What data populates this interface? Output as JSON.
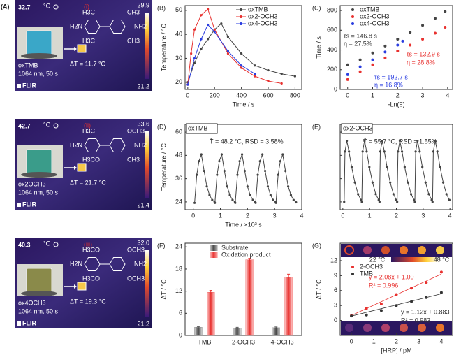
{
  "images": [
    {
      "panel": "(A)",
      "temp": "32.7",
      "unit": "°C",
      "roman": "(i)",
      "max": "29.9",
      "min": "21.2",
      "name": "oxTMB",
      "condition": "1064 nm, 50 s",
      "delta": "ΔT = 11.7 °C",
      "brand": "FLIR",
      "structure": [
        "H3C",
        "H2N",
        "H3C",
        "CH3",
        "NH2",
        "CH3"
      ]
    },
    {
      "temp": "42.7",
      "unit": "°C",
      "roman": "(ii)",
      "max": "33.6",
      "min": "21.4",
      "name": "ox2OCH3",
      "condition": "1064 nm, 50 s",
      "delta": "ΔT = 21.7 °C",
      "brand": "FLIR",
      "structure": [
        "H3C",
        "H2N",
        "H3CO",
        "OCH3",
        "NH2",
        "CH3"
      ]
    },
    {
      "temp": "40.3",
      "unit": "°C",
      "roman": "(iii)",
      "max": "32.0",
      "min": "21.2",
      "name": "ox4OCH3",
      "condition": "1064 nm, 50 s",
      "delta": "ΔT = 19.3 °C",
      "brand": "FLIR",
      "structure": [
        "H3CO",
        "H2N",
        "H3CO",
        "OCH3",
        "NH2",
        "OCH3"
      ]
    }
  ],
  "chart_data": [
    {
      "type": "line",
      "panel": "(B)",
      "xlabel": "Time / s",
      "ylabel": "Temperature / °C",
      "xlim": [
        -20,
        850
      ],
      "ylim": [
        17,
        52
      ],
      "xticks": [
        0,
        200,
        400,
        600,
        800
      ],
      "yticks": [
        20,
        30,
        40,
        50
      ],
      "legend": "upper right",
      "series": [
        {
          "name": "oxTMB",
          "color": "#444444",
          "x": [
            0,
            50,
            100,
            150,
            200,
            250,
            300,
            400,
            500,
            600,
            700,
            800
          ],
          "values": [
            20,
            28,
            34,
            38,
            42,
            44.5,
            39,
            32,
            27,
            25,
            23.5,
            22.5
          ]
        },
        {
          "name": "ox2-OCH3",
          "color": "#e8312f",
          "x": [
            0,
            25,
            50,
            100,
            150,
            200,
            300,
            400,
            500,
            600,
            700
          ],
          "values": [
            19,
            32,
            42,
            48,
            50.5,
            42,
            32,
            26,
            22.5,
            20.5,
            19.5
          ]
        },
        {
          "name": "ox4-OCH3",
          "color": "#2a3de0",
          "x": [
            0,
            50,
            100,
            150,
            200,
            300,
            400,
            500
          ],
          "values": [
            19,
            30,
            38,
            44,
            41,
            33,
            27,
            23.5
          ]
        }
      ]
    },
    {
      "type": "scatter",
      "panel": "(C)",
      "xlabel": "-Ln(θ)",
      "ylabel": "Time / s",
      "xlim": [
        -0.3,
        4.2
      ],
      "ylim": [
        0,
        850
      ],
      "xticks": [
        0,
        1,
        2,
        3,
        4
      ],
      "yticks": [
        0,
        200,
        400,
        600,
        800
      ],
      "legend": "upper left",
      "series": [
        {
          "name": "oxTMB",
          "color": "#444444",
          "x": [
            0,
            0.5,
            1,
            1.5,
            2,
            2.5,
            3,
            3.5,
            3.9
          ],
          "values": [
            250,
            300,
            370,
            440,
            510,
            580,
            650,
            720,
            790
          ]
        },
        {
          "name": "ox2-OCH3",
          "color": "#e8312f",
          "x": [
            0,
            0.5,
            1,
            1.5,
            2,
            2.5,
            3,
            3.5,
            3.9
          ],
          "values": [
            100,
            180,
            250,
            320,
            390,
            450,
            510,
            570,
            630
          ]
        },
        {
          "name": "ox4-OCH3",
          "color": "#2a3de0",
          "x": [
            0,
            0.5,
            1,
            1.5,
            2,
            2.2
          ],
          "values": [
            150,
            230,
            300,
            380,
            450,
            490
          ]
        }
      ],
      "annotations": [
        {
          "text": "τs = 146.8 s",
          "color": "#333333"
        },
        {
          "text": "η = 27.5%",
          "color": "#333333"
        },
        {
          "text": "τs = 132.9 s",
          "color": "#e8312f"
        },
        {
          "text": "η = 28.8%",
          "color": "#e8312f"
        },
        {
          "text": "τs = 192.7 s",
          "color": "#2a3de0"
        },
        {
          "text": "η = 16.8%",
          "color": "#2a3de0"
        }
      ]
    },
    {
      "type": "line",
      "panel": "(D)",
      "tag": "oxTMB",
      "xlabel": "Time / ×10³ s",
      "ylabel": "Temperature / °C",
      "xlim": [
        -0.3,
        4
      ],
      "ylim": [
        20,
        64
      ],
      "xticks": [
        0,
        1,
        2,
        3,
        4
      ],
      "yticks": [
        24,
        36,
        48,
        60
      ],
      "series": [
        {
          "color": "#444444",
          "x": [
            0.05,
            0.13,
            0.21,
            0.3,
            0.4,
            0.5,
            0.6,
            0.7,
            0.79,
            0.8,
            0.88,
            0.96,
            1.05,
            1.15,
            1.25,
            1.35,
            1.45,
            1.54,
            1.55,
            1.63,
            1.71,
            1.8,
            1.9,
            2.0,
            2.1,
            2.2,
            2.29,
            2.3,
            2.38,
            2.46,
            2.55,
            2.65,
            2.75,
            2.85,
            2.95,
            3.04,
            3.05,
            3.13,
            3.21,
            3.3,
            3.4,
            3.5,
            3.6,
            3.7,
            3.79
          ],
          "values": [
            23.5,
            38,
            45,
            48.5,
            40,
            32,
            27.5,
            25,
            23.8,
            23.5,
            38,
            45,
            48.5,
            40,
            32,
            27.5,
            25,
            23.8,
            23.5,
            38,
            45,
            48.5,
            40,
            32,
            27.5,
            25,
            23.8,
            23.5,
            38,
            45,
            48.5,
            40,
            32,
            27.5,
            25,
            23.8,
            23.5,
            38,
            45,
            48.5,
            40,
            32,
            27.5,
            25,
            23.8
          ]
        }
      ],
      "annotations": [
        {
          "text": "T̄ = 48.2 °C, RSD = 3.58%",
          "color": "#222222"
        }
      ]
    },
    {
      "type": "line",
      "panel": "(E)",
      "tag": "ox2-OCH3",
      "ytick_labels": false,
      "xlim": [
        -0.1,
        4.1
      ],
      "ylim": [
        20,
        64
      ],
      "xticks": [
        0,
        1,
        2,
        3,
        4
      ],
      "yticks": [
        24,
        36,
        48,
        60
      ],
      "series": [
        {
          "color": "#444444",
          "x": [
            0.05,
            0.08,
            0.15,
            0.23,
            0.33,
            0.45,
            0.57,
            0.68,
            0.71,
            0.74,
            0.81,
            0.89,
            0.99,
            1.11,
            1.23,
            1.34,
            1.37,
            1.4,
            1.47,
            1.55,
            1.65,
            1.77,
            1.89,
            2.0,
            2.03,
            2.06,
            2.13,
            2.21,
            2.31,
            2.43,
            2.55,
            2.66,
            2.69,
            2.72,
            2.79,
            2.87,
            2.97,
            3.09,
            3.21,
            3.32,
            3.35,
            3.38,
            3.45,
            3.53,
            3.63,
            3.75,
            3.87,
            3.98
          ],
          "values": [
            24,
            50,
            55.5,
            50,
            42,
            34,
            28,
            25,
            24,
            50,
            55.5,
            50,
            42,
            34,
            28,
            25,
            24,
            50,
            55.5,
            50,
            42,
            34,
            28,
            25,
            24,
            50,
            55.5,
            50,
            42,
            34,
            28,
            25,
            24,
            50,
            55.5,
            50,
            42,
            34,
            28,
            25,
            24,
            50,
            55.5,
            50,
            42,
            34,
            28,
            25
          ]
        }
      ],
      "annotations": [
        {
          "text": "T̄ = 55.7 °C, RSD = 1.55%",
          "color": "#222222"
        }
      ]
    },
    {
      "type": "bar",
      "panel": "(F)",
      "ylabel": "ΔT / °C",
      "categories": [
        "TMB",
        "2-OCH3",
        "4-OCH3"
      ],
      "ylim": [
        0,
        25
      ],
      "yticks": [
        0,
        6,
        12,
        18,
        24
      ],
      "legend": "upper left",
      "series": [
        {
          "name": "Substrate",
          "color": "#555555",
          "values": [
            2.2,
            2.0,
            2.1
          ],
          "errors": [
            0.2,
            0.2,
            0.2
          ]
        },
        {
          "name": "Oxidation product",
          "color": "#e8312f",
          "values": [
            11.7,
            20.5,
            15.8
          ],
          "errors": [
            0.5,
            0.4,
            0.8
          ]
        }
      ]
    },
    {
      "type": "scatter",
      "panel": "(G)",
      "xlabel": "[HRP] / pM",
      "ylabel": "ΔT / °C",
      "xlim": [
        -0.5,
        4.5
      ],
      "ylim": [
        -3,
        15.5
      ],
      "xticks": [
        0,
        1,
        2,
        3,
        4
      ],
      "yticks": [
        0,
        3,
        6,
        9,
        12
      ],
      "legend": "upper left",
      "colorbar": [
        "22 °C",
        "48 °C"
      ],
      "series": [
        {
          "name": "2-OCH3",
          "color": "#e8312f",
          "x": [
            0,
            0.67,
            1.33,
            2,
            2.67,
            3.33,
            4
          ],
          "values": [
            1.0,
            2.4,
            3.3,
            5.2,
            6.5,
            7.6,
            9.7
          ],
          "fit": {
            "slope": 2.08,
            "intercept": 1.0
          }
        },
        {
          "name": "TMB",
          "color": "#333333",
          "x": [
            0,
            0.67,
            1.33,
            2,
            2.67,
            3.33,
            4
          ],
          "values": [
            0.9,
            1.1,
            2.0,
            3.0,
            3.8,
            4.6,
            5.6
          ],
          "fit": {
            "slope": 1.12,
            "intercept": 0.883
          }
        }
      ],
      "annotations": [
        {
          "text": "y = 2.08x + 1.00",
          "color": "#e8312f"
        },
        {
          "text": "R² = 0.996",
          "color": "#e8312f"
        },
        {
          "text": "y = 1.12x + 0.883",
          "color": "#333333"
        },
        {
          "text": "R² = 0.983",
          "color": "#333333"
        }
      ]
    }
  ]
}
